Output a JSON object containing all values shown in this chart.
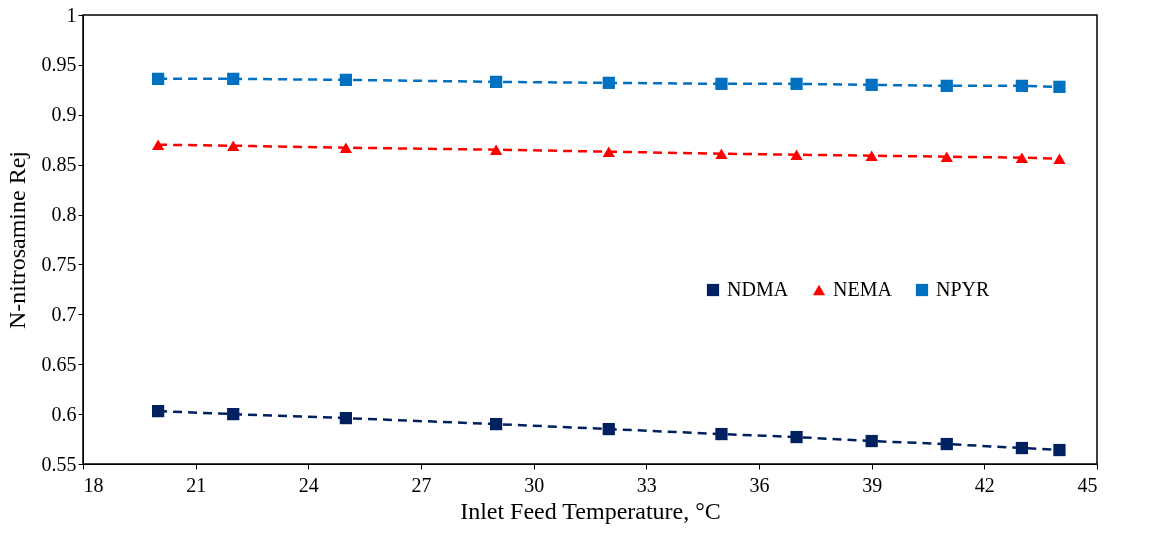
{
  "chart_data": {
    "type": "line",
    "xlabel": "Inlet Feed Temperature,  °C",
    "ylabel": "N-nitrosamine Rej",
    "x": [
      20,
      22,
      25,
      29,
      32,
      35,
      37,
      39,
      41,
      43,
      44
    ],
    "series": [
      {
        "name": "NDMA",
        "color": "#002060",
        "marker": "square",
        "line_style": "dashed",
        "values": [
          0.603,
          0.6,
          0.596,
          0.59,
          0.585,
          0.58,
          0.577,
          0.573,
          0.57,
          0.566,
          0.564
        ]
      },
      {
        "name": "NEMA",
        "color": "#ff0000",
        "marker": "triangle",
        "line_style": "dashed",
        "values": [
          0.87,
          0.869,
          0.867,
          0.865,
          0.863,
          0.861,
          0.86,
          0.859,
          0.858,
          0.857,
          0.856
        ]
      },
      {
        "name": "NPYR",
        "color": "#0070c0",
        "marker": "square",
        "line_style": "dashed",
        "values": [
          0.936,
          0.936,
          0.935,
          0.933,
          0.932,
          0.931,
          0.931,
          0.93,
          0.929,
          0.929,
          0.928
        ]
      }
    ],
    "xlim": [
      18,
      45
    ],
    "xticks": [
      18,
      21,
      24,
      27,
      30,
      33,
      36,
      39,
      42,
      45
    ],
    "ylim": [
      0.55,
      1
    ],
    "yticks": [
      0.55,
      0.6,
      0.65,
      0.7,
      0.75,
      0.8,
      0.85,
      0.9,
      0.95,
      1
    ],
    "grid": false,
    "legend": "right"
  }
}
